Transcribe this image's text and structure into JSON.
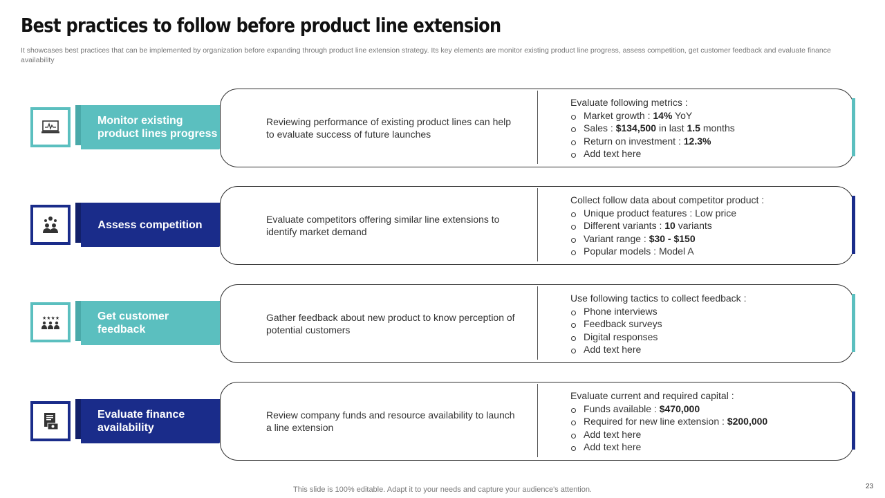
{
  "title": "Best practices to follow before product line extension",
  "subtitle": "It showcases best practices that can be implemented by organization before expanding through product line extension strategy. Its key elements are monitor existing product line progress, assess competition, get customer feedback and evaluate finance availability",
  "colors": {
    "teal": "#5bbfbf",
    "navy": "#1a2c8a",
    "text": "#333333"
  },
  "rows": [
    {
      "icon": "monitor-chart-icon",
      "label": "Monitor existing product lines progress",
      "description": "Reviewing performance of existing product lines can help to evaluate success of future launches",
      "detail_title": "Evaluate following metrics :",
      "bullets": [
        {
          "pre": "Market growth : ",
          "bold": "14%",
          "post": " YoY"
        },
        {
          "pre": "Sales : ",
          "bold": "$134,500",
          "post": " in last ",
          "bold2": "1.5",
          "post2": " months"
        },
        {
          "pre": "Return on investment : ",
          "bold": "12.3%",
          "post": ""
        },
        {
          "pre": "Add text here",
          "bold": "",
          "post": ""
        }
      ]
    },
    {
      "icon": "competition-group-icon",
      "label": "Assess competition",
      "description": "Evaluate competitors offering similar line extensions to identify market demand",
      "detail_title": "Collect follow data about competitor product :",
      "bullets": [
        {
          "pre": "Unique product features : Low price",
          "bold": "",
          "post": ""
        },
        {
          "pre": "Different variants : ",
          "bold": "10",
          "post": " variants"
        },
        {
          "pre": "Variant range : ",
          "bold": "$30 - $150",
          "post": ""
        },
        {
          "pre": "Popular models : Model A",
          "bold": "",
          "post": ""
        }
      ]
    },
    {
      "icon": "customer-rating-icon",
      "label": "Get customer feedback",
      "description": "Gather feedback about new product to know perception of potential customers",
      "detail_title": "Use following tactics to collect feedback :",
      "bullets": [
        {
          "pre": "Phone interviews",
          "bold": "",
          "post": ""
        },
        {
          "pre": "Feedback surveys",
          "bold": "",
          "post": ""
        },
        {
          "pre": "Digital responses",
          "bold": "",
          "post": ""
        },
        {
          "pre": "Add text here",
          "bold": "",
          "post": ""
        }
      ]
    },
    {
      "icon": "finance-document-icon",
      "label": "Evaluate finance availability",
      "description": "Review company funds and resource availability to launch a line extension",
      "detail_title": "Evaluate current and required capital :",
      "bullets": [
        {
          "pre": "Funds available : ",
          "bold": "$470,000",
          "post": ""
        },
        {
          "pre": "Required for new line extension : ",
          "bold": "$200,000",
          "post": ""
        },
        {
          "pre": "Add text here",
          "bold": "",
          "post": ""
        },
        {
          "pre": "Add text here",
          "bold": "",
          "post": ""
        }
      ]
    }
  ],
  "footer": "This slide is 100% editable. Adapt it to your needs and capture your audience's attention.",
  "page_number": "23"
}
